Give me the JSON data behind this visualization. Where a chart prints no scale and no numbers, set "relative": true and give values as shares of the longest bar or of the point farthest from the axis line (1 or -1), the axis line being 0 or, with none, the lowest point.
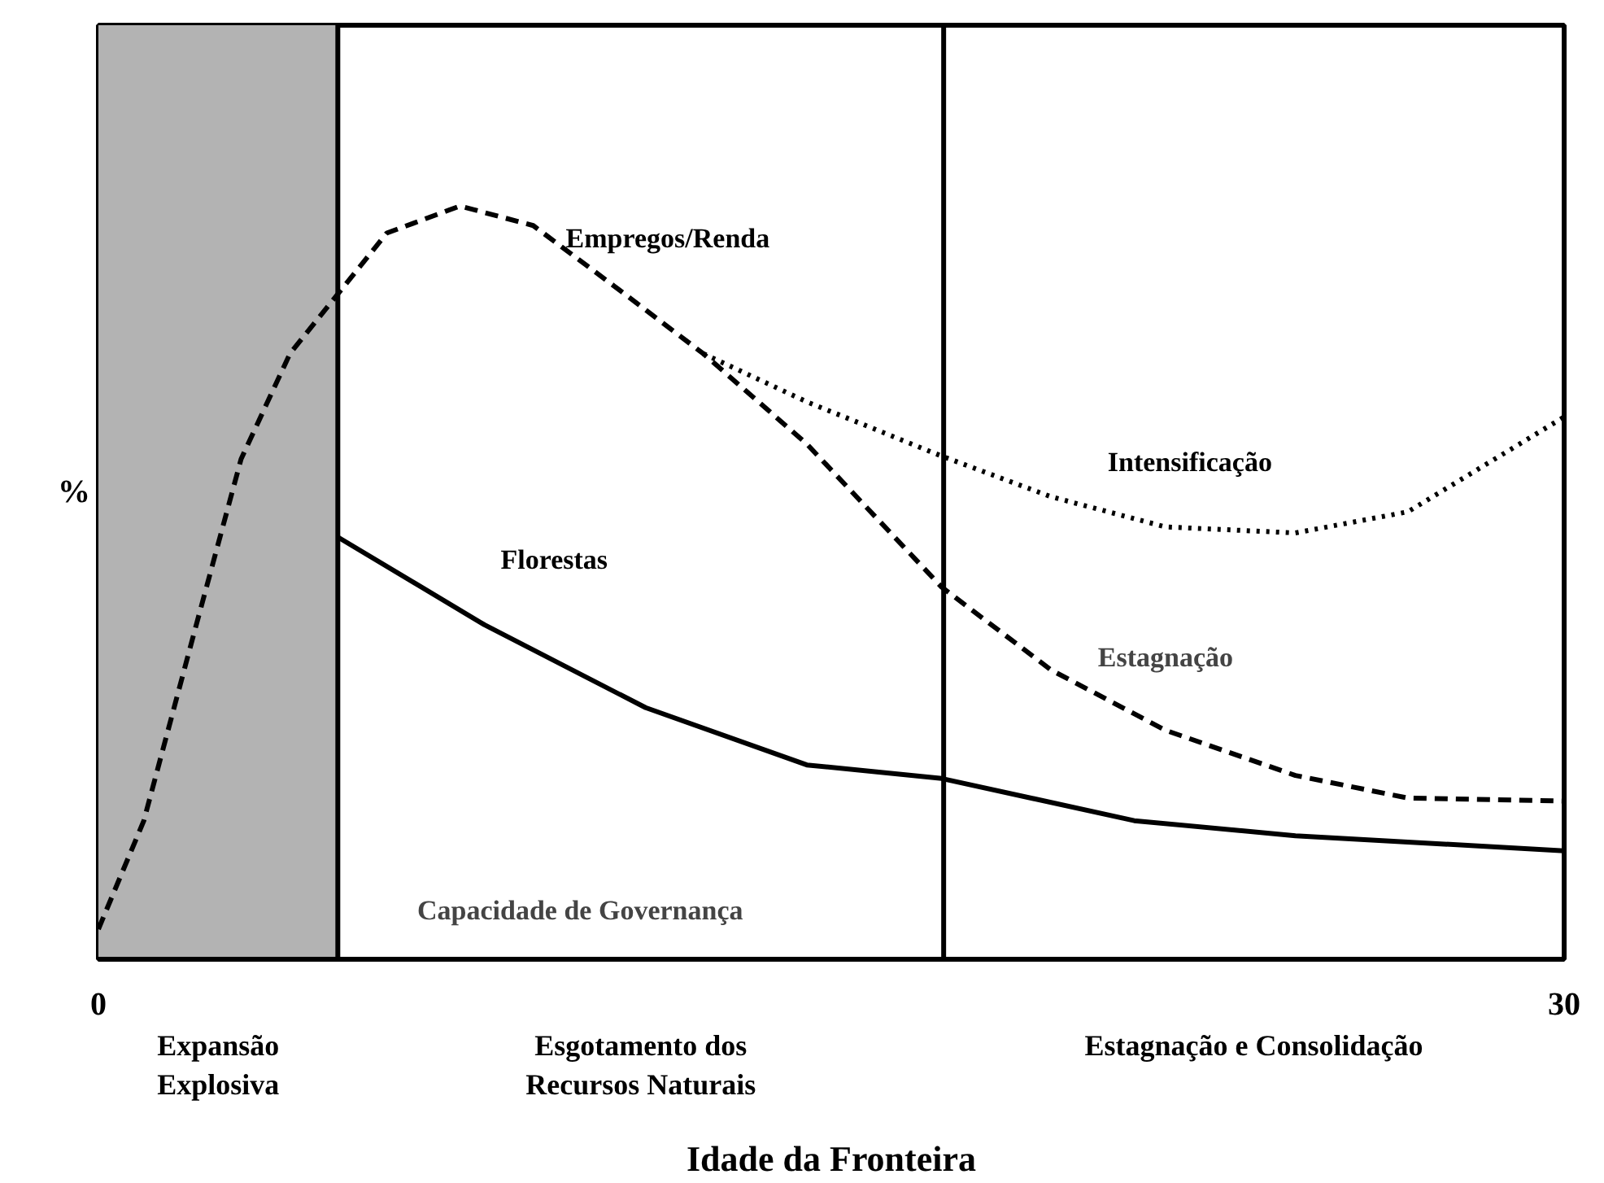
{
  "chart_data": {
    "type": "line",
    "relative": true,
    "xlabel": "Idade da Fronteira",
    "ylabel": "%",
    "xlim": [
      0,
      30
    ],
    "xticks": [
      0,
      30
    ],
    "series": [
      {
        "name": "Empregos/Renda",
        "color": "#000000",
        "line_style": "dashed",
        "x": [
          0,
          0.93,
          1.92,
          2.92,
          3.92,
          4.91,
          5.9,
          7.4,
          8.9,
          10.55,
          12.38,
          14.5,
          17.26,
          19.5,
          21.84,
          24.5,
          26.8,
          30
        ],
        "values": [
          0.04,
          0.184,
          0.424,
          0.664,
          0.804,
          0.884,
          0.964,
          1.0,
          0.974,
          0.894,
          0.804,
          0.684,
          0.494,
          0.384,
          0.304,
          0.244,
          0.214,
          0.21
        ]
      },
      {
        "name": "Intensificação",
        "color": "#000000",
        "line_style": "dotted",
        "x": [
          12.38,
          14.5,
          17.26,
          19.5,
          21.84,
          24.5,
          26.8,
          30
        ],
        "values": [
          0.804,
          0.74,
          0.668,
          0.614,
          0.574,
          0.566,
          0.594,
          0.72
        ]
      },
      {
        "name": "Florestas",
        "color": "#000000",
        "line_style": "solid",
        "x": [
          4.91,
          7.9,
          11.2,
          14.5,
          17.26,
          21.2,
          24.5,
          30
        ],
        "values": [
          0.56,
          0.444,
          0.334,
          0.258,
          0.24,
          0.184,
          0.164,
          0.144
        ]
      }
    ],
    "bands": [
      {
        "axis": "x",
        "from": 0,
        "to": 4.9,
        "color": "#b3b3b3"
      }
    ],
    "ref_lines": [
      {
        "axis": "x",
        "value": 4.9,
        "color": "#000000"
      },
      {
        "axis": "x",
        "value": 17.3,
        "color": "#000000"
      }
    ],
    "annotations": [
      {
        "text": "Estagnação",
        "x": 21.84,
        "y": 0.304
      },
      "Capacidade de Governança",
      "Expansão\nExplosiva",
      "Esgotamento dos\nRecursos Naturais",
      "Estagnação e Consolidação"
    ]
  }
}
